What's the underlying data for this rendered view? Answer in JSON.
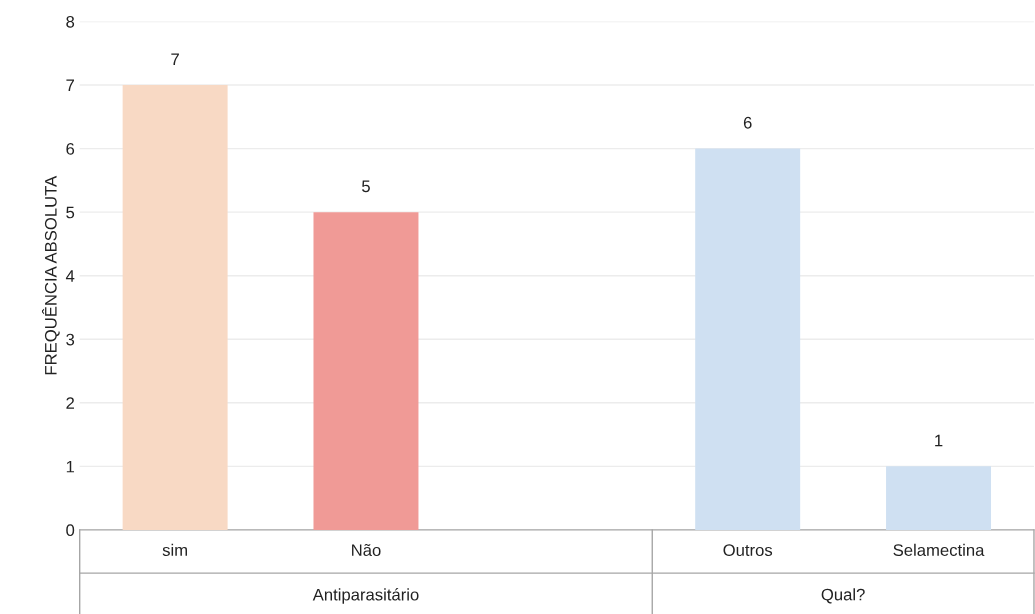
{
  "chart_data": {
    "type": "bar",
    "ylabel": "FREQUÊNCIA ABSOLUTA",
    "categories": [
      "sim",
      "Não",
      null,
      "Outros",
      "Selamectina"
    ],
    "values": [
      7,
      5,
      null,
      6,
      1
    ],
    "colors": [
      "#f8d9c4",
      "#f09a96",
      "#cfe0f2",
      "#cfe0f2",
      "#cfe0f2"
    ],
    "annotations": [
      "Antiparasitário",
      "Qual?"
    ],
    "ylim": [
      0,
      8
    ],
    "yticks": [
      0,
      1,
      2,
      3,
      4,
      5,
      6,
      7,
      8
    ],
    "grid": "y",
    "data_labels": true
  }
}
